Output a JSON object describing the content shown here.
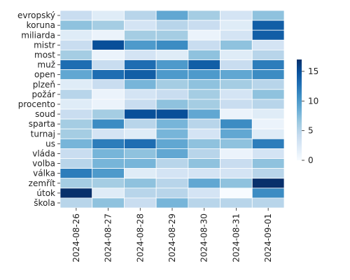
{
  "chart_data": {
    "type": "heatmap",
    "title": "",
    "xlabel": "",
    "ylabel": "",
    "x": [
      "2024-08-26",
      "2024-08-27",
      "2024-08-28",
      "2024-08-29",
      "2024-08-30",
      "2024-08-31",
      "2024-09-01"
    ],
    "y": [
      "evropský",
      "koruna",
      "miliarda",
      "mistr",
      "most",
      "muž",
      "open",
      "plzeň",
      "požár",
      "procento",
      "soud",
      "sparta",
      "turnaj",
      "us",
      "vláda",
      "volba",
      "válka",
      "zemřít",
      "útok",
      "škola"
    ],
    "values": [
      [
        4,
        2,
        5,
        9,
        6,
        3,
        7
      ],
      [
        7,
        6,
        3,
        5,
        4,
        2,
        14
      ],
      [
        2,
        1,
        6,
        6,
        1,
        3,
        14
      ],
      [
        4,
        15,
        10,
        11,
        4,
        7,
        3
      ],
      [
        6,
        1,
        3,
        2,
        7,
        2,
        5
      ],
      [
        13,
        4,
        13,
        10,
        14,
        4,
        12
      ],
      [
        9,
        13,
        14,
        10,
        10,
        9,
        11
      ],
      [
        2,
        4,
        8,
        6,
        7,
        6,
        5
      ],
      [
        5,
        1,
        3,
        4,
        6,
        3,
        7
      ],
      [
        2,
        1,
        4,
        7,
        6,
        4,
        5
      ],
      [
        4,
        6,
        15,
        15,
        9,
        1,
        2
      ],
      [
        6,
        11,
        5,
        8,
        5,
        11,
        1
      ],
      [
        6,
        3,
        2,
        8,
        3,
        9,
        2
      ],
      [
        8,
        12,
        13,
        9,
        7,
        7,
        12
      ],
      [
        4,
        8,
        7,
        9,
        5,
        1,
        3
      ],
      [
        5,
        8,
        8,
        5,
        7,
        4,
        7
      ],
      [
        12,
        10,
        2,
        3,
        3,
        3,
        5
      ],
      [
        6,
        6,
        7,
        5,
        9,
        7,
        17
      ],
      [
        17,
        2,
        5,
        5,
        3,
        0,
        11
      ],
      [
        5,
        7,
        4,
        8,
        5,
        5,
        5
      ]
    ],
    "vmin": 0,
    "vmax": 17,
    "colorbar_ticks": [
      0,
      5,
      10,
      15
    ],
    "colorscale": [
      "#f7fbff",
      "#deebf7",
      "#c6dbef",
      "#9ecae1",
      "#6baed6",
      "#4292c6",
      "#2171b5",
      "#08519c",
      "#08306b"
    ],
    "grid_color": "#ffffff",
    "legend_placement": "right"
  }
}
